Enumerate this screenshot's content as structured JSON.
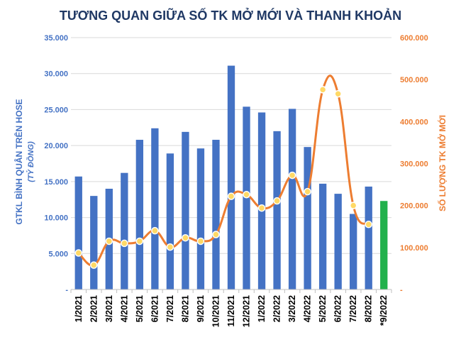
{
  "chart_data": {
    "type": "bar",
    "title": "TƯƠNG QUAN GIỮA SỐ TK MỞ MỚI VÀ THANH KHOẢN",
    "categories": [
      "1/2021",
      "2/2021",
      "3/2021",
      "4/2021",
      "5/2021",
      "6/2021",
      "7/2021",
      "8/2021",
      "9/2021",
      "10/2021",
      "11/2021",
      "12/2021",
      "1/2022",
      "2/2022",
      "3/2022",
      "4/2022",
      "5/2022",
      "6/2022",
      "7/2022",
      "8/2022",
      "*9/2022"
    ],
    "ylabel": "GTKL BÌNH QUÂN TRÊN HOSE",
    "ylabel_sub": "(TỶ ĐỒNG)",
    "y2label": "SỐ LƯỢNG TK MỞ MỚI",
    "ylim": [
      0,
      35000
    ],
    "y2lim": [
      0,
      600000
    ],
    "yticks": [
      "-",
      "5.000",
      "10.000",
      "15.000",
      "20.000",
      "25.000",
      "30.000",
      "35.000"
    ],
    "y2ticks": [
      "-",
      "100.000",
      "200.000",
      "300.000",
      "400.000",
      "500.000",
      "600.000"
    ],
    "bar_values": [
      15700,
      13000,
      14000,
      16200,
      20800,
      22400,
      18900,
      21900,
      19600,
      20800,
      31100,
      25400,
      24600,
      22000,
      25100,
      19800,
      14700,
      13300,
      10500,
      14300,
      12300
    ],
    "line_values": [
      87000,
      58000,
      115000,
      110000,
      115000,
      140000,
      101000,
      123000,
      115000,
      131000,
      222000,
      226000,
      194000,
      211000,
      272000,
      233000,
      476000,
      466000,
      200000,
      155000
    ],
    "grid": true,
    "legend": "none",
    "colors": {
      "bar": "#4472c4",
      "bar_highlight": "#22b14c",
      "line": "#ed7d31",
      "marker_fill": "#ffd966",
      "title": "#1f3864"
    }
  }
}
